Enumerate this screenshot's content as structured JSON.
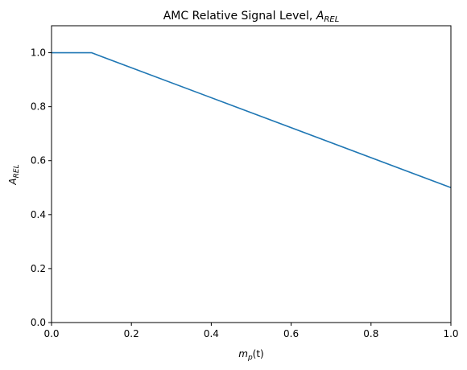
{
  "chart_data": {
    "type": "line",
    "title_main": "AMC Relative Signal Level, ",
    "title_sym": "A",
    "title_sub": "REL",
    "xlabel_main": "m",
    "xlabel_sub": "p",
    "xlabel_tail": "(t)",
    "ylabel_main": "A",
    "ylabel_sub": "REL",
    "xlim": [
      0.0,
      1.0
    ],
    "ylim": [
      0.0,
      1.1
    ],
    "xticks": [
      0.0,
      0.2,
      0.4,
      0.6,
      0.8,
      1.0
    ],
    "xtick_labels": [
      "0.0",
      "0.2",
      "0.4",
      "0.6",
      "0.8",
      "1.0"
    ],
    "yticks": [
      0.0,
      0.2,
      0.4,
      0.6,
      0.8,
      1.0
    ],
    "ytick_labels": [
      "0.0",
      "0.2",
      "0.4",
      "0.6",
      "0.8",
      "1.0"
    ],
    "grid": false,
    "series": [
      {
        "x": [
          0.0,
          0.1,
          1.0
        ],
        "y": [
          1.0,
          1.0,
          0.5
        ],
        "color": "#1f77b4"
      }
    ]
  }
}
